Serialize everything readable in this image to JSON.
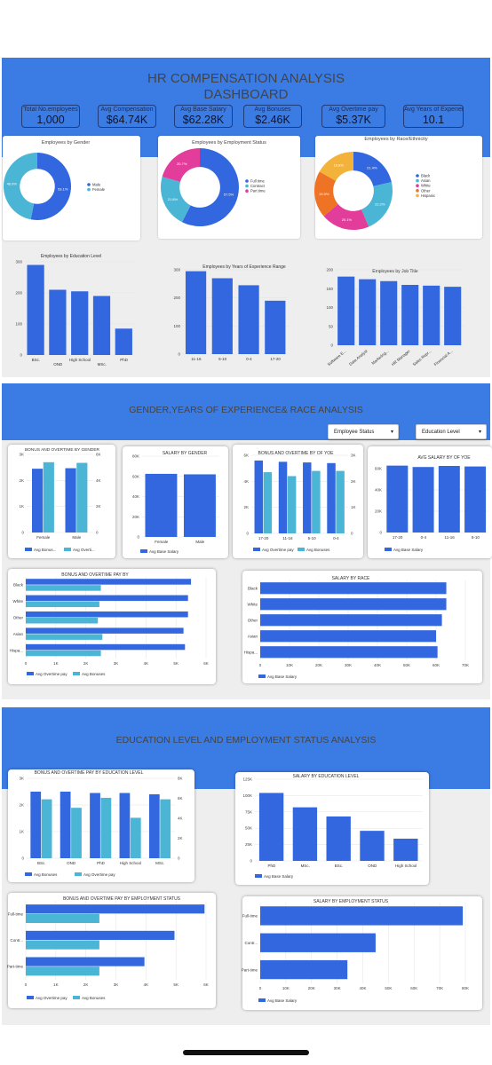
{
  "dashboard": {
    "title_line1": "HR COMPENSATION ANALYSIS",
    "title_line2": "DASHBOARD",
    "section2_title": "GENDER,YEARS OF EXPERIENCE& RACE ANALYSIS",
    "section3_title": "EDUCATION LEVEL AND EMPLOYMENT STATUS ANALYSIS"
  },
  "colors": {
    "band": "#3b7be4",
    "primary": "#3367e0",
    "secondary": "#4ab5d4",
    "pink": "#e23d9a",
    "orange": "#ee7324",
    "amber": "#f3b23a"
  },
  "kpis": [
    {
      "label": "Total No.employees",
      "value": "1,000"
    },
    {
      "label": "Avg Compensation",
      "value": "$64.74K"
    },
    {
      "label": "Avg Base Salary",
      "value": "$62.28K"
    },
    {
      "label": "Avg Bonuses",
      "value": "$2.46K"
    },
    {
      "label": "Avg Overtime pay",
      "value": "$5.37K"
    },
    {
      "label": "Avg Years of Experience",
      "value": "10.1"
    }
  ],
  "filters": {
    "employee_status": "Employee Status",
    "education_level": "Education Level",
    "caret": "▾"
  },
  "chart_data": [
    {
      "id": "gender_pie",
      "type": "pie",
      "title": "Employees by Gender",
      "labels": [
        "Male",
        "Female"
      ],
      "values": [
        53.1,
        46.9
      ],
      "slice_labels": [
        "53.1%",
        "46.9%"
      ],
      "colors": [
        "#3367e0",
        "#4ab5d4"
      ],
      "legend": "right"
    },
    {
      "id": "status_pie",
      "type": "pie",
      "title": "Employees by Employment Status",
      "labels": [
        "Full time",
        "Contract",
        "Part time"
      ],
      "values": [
        57.5,
        21.8,
        20.7
      ],
      "slice_labels": [
        "57.5%",
        "21.8%",
        "20.7%"
      ],
      "colors": [
        "#3367e0",
        "#4ab5d4",
        "#e23d9a"
      ],
      "legend": "right"
    },
    {
      "id": "race_pie",
      "type": "pie",
      "title": "Employees by Race/Ethnicity",
      "labels": [
        "Black",
        "Asian",
        "White",
        "Other",
        "Hispanic"
      ],
      "values": [
        21.4,
        22.2,
        20.1,
        19.5,
        16.8
      ],
      "slice_labels": [
        "21.4%",
        "22.2%",
        "20.1%",
        "19.5%",
        "16.8%"
      ],
      "colors": [
        "#3367e0",
        "#4ab5d4",
        "#e23d9a",
        "#ee7324",
        "#f3b23a"
      ],
      "legend": "right"
    },
    {
      "id": "edu_count",
      "type": "bar",
      "title": "Employees by Education Level",
      "categories": [
        "BSc.",
        "OND",
        "High School",
        "MSc.",
        "PhD"
      ],
      "values": [
        290,
        210,
        205,
        190,
        85
      ],
      "ylim": [
        0,
        300
      ],
      "yticks": [
        0,
        100,
        200,
        300
      ],
      "ytick_labels": [
        "0",
        "100",
        "200",
        "300"
      ]
    },
    {
      "id": "yoe_count",
      "type": "bar",
      "title": "Employees by Years of Experience Range",
      "categories": [
        "11-16",
        "5-10",
        "0-4",
        "17-20"
      ],
      "values": [
        295,
        270,
        245,
        190
      ],
      "ylim": [
        0,
        300
      ],
      "yticks": [
        0,
        100,
        200,
        300
      ],
      "ytick_labels": [
        "0",
        "100",
        "200",
        "300"
      ]
    },
    {
      "id": "job_count",
      "type": "bar",
      "title": "Employees by Job Title",
      "categories": [
        "Software E...",
        "Data Analyst",
        "Marketing...",
        "HR Manager",
        "Sales Repr...",
        "Financial A..."
      ],
      "values": [
        182,
        175,
        170,
        160,
        158,
        155
      ],
      "ylim": [
        0,
        200
      ],
      "yticks": [
        0,
        50,
        100,
        150,
        200
      ],
      "ytick_labels": [
        "0",
        "50",
        "100",
        "150",
        "200"
      ]
    },
    {
      "id": "bonus_ot_gender",
      "type": "bar",
      "title": "BONUS AND OVERTIME BY GENDER",
      "categories": [
        "Female",
        "Male"
      ],
      "series": [
        {
          "name": "Avg Bonus...",
          "values": [
            2450,
            2470
          ]
        },
        {
          "name": "Avg Overti...",
          "values": [
            5400,
            5350
          ]
        }
      ],
      "ylim": [
        0,
        3000
      ],
      "yticks": [
        0,
        1000,
        2000,
        3000
      ],
      "ytick_labels": [
        "0",
        "1K",
        "2K",
        "3K"
      ],
      "y2lim": [
        0,
        6000
      ],
      "y2ticks": [
        0,
        2000,
        4000,
        6000
      ],
      "y2tick_labels": [
        "0",
        "2K",
        "4K",
        "6K"
      ]
    },
    {
      "id": "salary_gender",
      "type": "bar",
      "title": "SALARY  BY GENDER",
      "categories": [
        "Female",
        "Male"
      ],
      "series": [
        {
          "name": "Avg Base Salary",
          "values": [
            62500,
            62000
          ]
        }
      ],
      "ylim": [
        0,
        80000
      ],
      "yticks": [
        0,
        20000,
        40000,
        60000,
        80000
      ],
      "ytick_labels": [
        "0",
        "20K",
        "40K",
        "60K",
        "80K"
      ]
    },
    {
      "id": "bonus_ot_yoe",
      "type": "bar",
      "title": "BONUS AND OVERTIME BY OF YOE",
      "categories": [
        "17-20",
        "11-16",
        "5-10",
        "0-4"
      ],
      "series": [
        {
          "name": "Avg Overtime pay",
          "values": [
            5600,
            5500,
            5450,
            5400
          ]
        },
        {
          "name": "Avg Bonuses",
          "values": [
            2350,
            2200,
            2400,
            2400
          ]
        }
      ],
      "ylim": [
        0,
        6000
      ],
      "yticks": [
        0,
        2000,
        4000,
        6000
      ],
      "ytick_labels": [
        "0",
        "2K",
        "4K",
        "6K"
      ],
      "y2lim": [
        0,
        3000
      ],
      "y2ticks": [
        0,
        1000,
        2000,
        3000
      ],
      "y2tick_labels": [
        "0",
        "1K",
        "2K",
        "3K"
      ]
    },
    {
      "id": "salary_yoe",
      "type": "bar",
      "title": "AVG SALARY BY OF YOE",
      "categories": [
        "17-20",
        "0-4",
        "11-16",
        "5-10"
      ],
      "series": [
        {
          "name": "Avg Base Salary",
          "values": [
            62800,
            61500,
            62500,
            62000
          ]
        }
      ],
      "ylim": [
        0,
        70000
      ],
      "yticks": [
        0,
        20000,
        40000,
        60000
      ],
      "ytick_labels": [
        "0",
        "20K",
        "40K",
        "60K"
      ]
    },
    {
      "id": "bonus_ot_race",
      "type": "bar",
      "orientation": "horizontal",
      "title": "BONUS AND OVERTIME PAY BY",
      "categories": [
        "Black",
        "White",
        "Other",
        "Asian",
        "Hispa..."
      ],
      "series": [
        {
          "name": "Avg Overtime pay",
          "values": [
            5500,
            5400,
            5400,
            5250,
            5300
          ]
        },
        {
          "name": "Avg Bonuses",
          "values": [
            2500,
            2450,
            2400,
            2550,
            2500
          ]
        }
      ],
      "xlim": [
        0,
        6000
      ],
      "xticks": [
        0,
        1000,
        2000,
        3000,
        4000,
        5000,
        6000
      ],
      "xtick_labels": [
        "0",
        "1K",
        "2K",
        "3K",
        "4K",
        "5K",
        "6K"
      ]
    },
    {
      "id": "salary_race",
      "type": "bar",
      "orientation": "horizontal",
      "title": "SALARY BY RACE",
      "categories": [
        "Black",
        "White",
        "Other",
        "Asian",
        "Hispa..."
      ],
      "series": [
        {
          "name": "Avg Base Salary",
          "values": [
            63500,
            63500,
            62000,
            60000,
            60500
          ]
        }
      ],
      "xlim": [
        0,
        70000
      ],
      "xticks": [
        0,
        10000,
        20000,
        30000,
        40000,
        50000,
        60000,
        70000
      ],
      "xtick_labels": [
        "0",
        "10K",
        "20K",
        "30K",
        "40K",
        "50K",
        "60K",
        "70K"
      ]
    },
    {
      "id": "bonus_ot_edu",
      "type": "bar",
      "title": "BONUS AND OVERTIME PAY BY EDUCATION LEVEL",
      "categories": [
        "BSc.",
        "OND",
        "PhD",
        "High School",
        "MSc."
      ],
      "series": [
        {
          "name": "Avg Bonuses",
          "values": [
            2500,
            2500,
            2450,
            2450,
            2400
          ]
        },
        {
          "name": "Avg Overtime pay",
          "values": [
            5900,
            5050,
            6050,
            4050,
            5900
          ]
        }
      ],
      "ylim": [
        0,
        3000
      ],
      "yticks": [
        0,
        1000,
        2000,
        3000
      ],
      "ytick_labels": [
        "0",
        "1K",
        "2K",
        "3K"
      ],
      "y2lim": [
        0,
        8000
      ],
      "y2ticks": [
        0,
        2000,
        4000,
        6000,
        8000
      ],
      "y2tick_labels": [
        "0",
        "2K",
        "4K",
        "6K",
        "8K"
      ]
    },
    {
      "id": "salary_edu",
      "type": "bar",
      "title": "SALARY BY EDUCATION LEVEL",
      "categories": [
        "PhD",
        "MSc.",
        "BSc.",
        "OND",
        "High School"
      ],
      "series": [
        {
          "name": "Avg Base Salary",
          "values": [
            104000,
            82000,
            68000,
            46000,
            34000
          ]
        }
      ],
      "ylim": [
        0,
        125000
      ],
      "yticks": [
        0,
        25000,
        50000,
        75000,
        100000,
        125000
      ],
      "ytick_labels": [
        "0",
        "25K",
        "50K",
        "75K",
        "100K",
        "125K"
      ]
    },
    {
      "id": "bonus_ot_status",
      "type": "bar",
      "orientation": "horizontal",
      "title": "BONUS AND OVERTIME PAY BY EMPLOYMENT STATUS",
      "categories": [
        "Full-time",
        "Contr...",
        "Part-time"
      ],
      "series": [
        {
          "name": "Avg Overtime pay",
          "values": [
            5950,
            4950,
            3950
          ]
        },
        {
          "name": "Avg Bonuses",
          "values": [
            2450,
            2450,
            2450
          ]
        }
      ],
      "xlim": [
        0,
        6000
      ],
      "xticks": [
        0,
        1000,
        2000,
        3000,
        4000,
        5000,
        6000
      ],
      "xtick_labels": [
        "0",
        "1K",
        "2K",
        "3K",
        "4K",
        "5K",
        "6K"
      ]
    },
    {
      "id": "salary_status",
      "type": "bar",
      "orientation": "horizontal",
      "title": "SALARY BY EMPLOYMENT STATUS",
      "categories": [
        "Full-time",
        "Contr...",
        "Part-time"
      ],
      "series": [
        {
          "name": "Avg Base Salary",
          "values": [
            79000,
            45000,
            34000
          ]
        }
      ],
      "xlim": [
        0,
        80000
      ],
      "xticks": [
        0,
        10000,
        20000,
        30000,
        40000,
        50000,
        60000,
        70000,
        80000
      ],
      "xtick_labels": [
        "0",
        "10K",
        "20K",
        "30K",
        "40K",
        "50K",
        "60K",
        "70K",
        "80K"
      ]
    }
  ]
}
